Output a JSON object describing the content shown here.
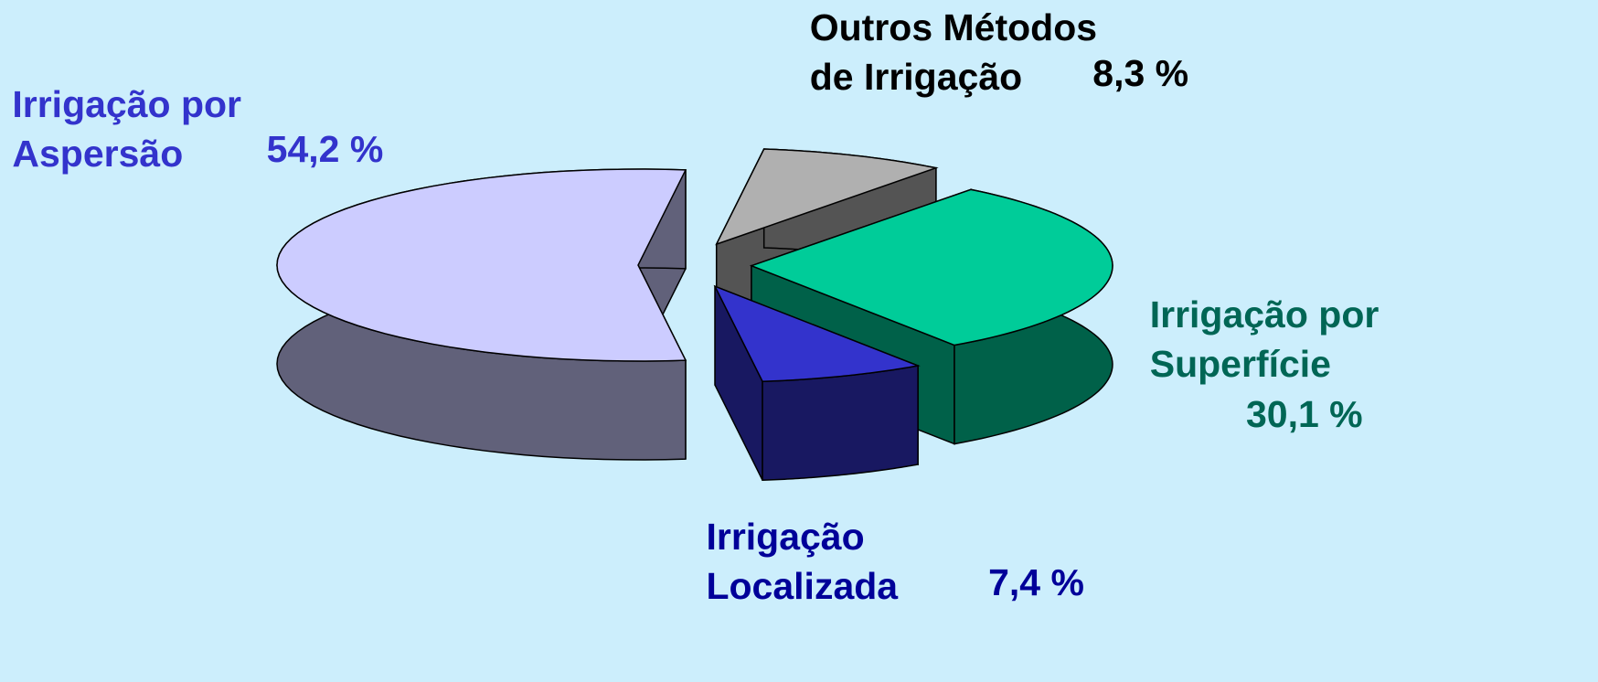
{
  "chart_data": {
    "type": "pie",
    "categories": [
      "Irrigação por\nAspersão",
      "Outros Métodos\nde Irrigação",
      "Irrigação por\nSuperfície",
      "Irrigação\nLocalizada"
    ],
    "values": [
      54.2,
      8.3,
      30.1,
      7.4
    ],
    "value_labels": [
      "54,2 %",
      "8,3 %",
      "30,1 %",
      "7,4 %"
    ],
    "colors": [
      "#ccccff",
      "#b0b0b0",
      "#00cc99",
      "#3333cc"
    ],
    "label_colors": [
      "#3333cc",
      "#000000",
      "#006655",
      "#000099"
    ]
  }
}
